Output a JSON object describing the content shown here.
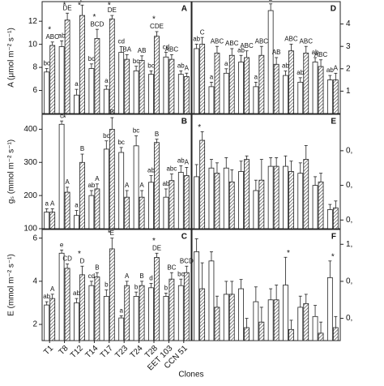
{
  "chart_data": [
    {
      "type": "bar",
      "title": "A",
      "y_label": "A (μmol m⁻² s⁻¹)",
      "axis_side": "left",
      "ylim": [
        4,
        13.7
      ],
      "yticks": [
        6,
        8,
        10,
        12
      ],
      "series": [
        {
          "color": "#ffffff",
          "hatch": false,
          "values": [
            7.6,
            9.8,
            5.6,
            7.9,
            6.1,
            9.3,
            7.7,
            7.4,
            8.9,
            7.4
          ],
          "errors": [
            0.3,
            0.5,
            0.5,
            0.4,
            0.3,
            0.5,
            0.4,
            0.3,
            0.4,
            0.3
          ],
          "letters": [
            "bc",
            "ab",
            "a",
            "bc",
            "a",
            "cd",
            "bc",
            "bc",
            "cd",
            "ab"
          ]
        },
        {
          "color": "#ffffff",
          "hatch": true,
          "values": [
            9.9,
            12.1,
            12.5,
            10.5,
            12.2,
            8.7,
            8.6,
            10.7,
            8.7,
            7.2
          ],
          "errors": [
            0.3,
            0.6,
            0.9,
            0.8,
            0.3,
            0.4,
            0.4,
            0.4,
            0.4,
            0.3
          ],
          "letters": [
            "ABC",
            "DE",
            "E",
            "BCD",
            "DE",
            "BA",
            "AB",
            "CDE",
            "ABC",
            "A"
          ]
        }
      ],
      "stars": [
        "*",
        "*",
        "*",
        "*",
        "*",
        null,
        null,
        "*",
        null,
        null
      ]
    },
    {
      "type": "bar",
      "title": "B",
      "y_label": "gₛ (mmol m⁻² s⁻¹)",
      "axis_side": "left",
      "ylim": [
        100,
        445
      ],
      "yticks": [
        100,
        200,
        300,
        400
      ],
      "series": [
        {
          "color": "#ffffff",
          "hatch": false,
          "values": [
            150,
            415,
            140,
            200,
            340,
            330,
            350,
            240,
            195,
            270
          ],
          "errors": [
            10,
            10,
            15,
            15,
            25,
            15,
            30,
            20,
            25,
            20
          ],
          "letters": [
            "a",
            "c",
            "a",
            "ab",
            "bc",
            "bc",
            "bc",
            "ab",
            "ab",
            "ab"
          ]
        },
        {
          "color": "#ffffff",
          "hatch": true,
          "values": [
            150,
            210,
            300,
            220,
            400,
            195,
            195,
            360,
            245,
            260
          ],
          "errors": [
            10,
            15,
            25,
            15,
            35,
            20,
            20,
            10,
            20,
            25
          ],
          "letters": [
            "A",
            "A",
            "B",
            "A",
            "B",
            "A",
            "A",
            "B",
            "abc",
            "A"
          ]
        }
      ],
      "stars": [
        null,
        "*",
        null,
        null,
        null,
        null,
        null,
        null,
        null,
        null
      ]
    },
    {
      "type": "bar",
      "title": "C",
      "y_label": "E (mmol m⁻² s⁻¹)",
      "axis_side": "left",
      "x_label": "Clones",
      "categories": [
        "T1",
        "T8",
        "T12",
        "T14",
        "T17",
        "T23",
        "T24",
        "T28",
        "EET 103",
        "CCN 51"
      ],
      "ylim": [
        1.25,
        6.4
      ],
      "yticks": [
        2,
        4,
        6
      ],
      "series": [
        {
          "color": "#ffffff",
          "hatch": false,
          "values": [
            2.9,
            5.3,
            3.0,
            3.8,
            3.3,
            2.3,
            3.3,
            3.7,
            3.3,
            3.8
          ],
          "errors": [
            0.15,
            0.15,
            0.2,
            0.2,
            0.3,
            0.1,
            0.2,
            0.2,
            0.15,
            0.3
          ],
          "letters": [
            "ab",
            "e",
            "ab",
            "cd",
            "b",
            "a",
            "b",
            "d",
            "b",
            "bc"
          ]
        },
        {
          "color": "#ffffff",
          "hatch": true,
          "values": [
            3.2,
            4.6,
            4.3,
            4.2,
            5.5,
            3.8,
            3.8,
            5.1,
            4.1,
            4.4
          ],
          "errors": [
            0.2,
            0.2,
            0.4,
            0.2,
            0.5,
            0.2,
            0.2,
            0.2,
            0.3,
            0.3
          ],
          "letters": [
            "A",
            "CD",
            "D",
            "B",
            "E",
            "A",
            "B",
            "DE",
            "BC",
            "BCD"
          ]
        }
      ],
      "stars": [
        null,
        null,
        "*",
        null,
        "*",
        null,
        null,
        "*",
        null,
        null
      ]
    },
    {
      "type": "bar",
      "title": "D",
      "axis_side": "right",
      "ylim": [
        0,
        5
      ],
      "yticks": [
        1,
        2,
        3,
        4
      ],
      "series": [
        {
          "color": "#ffffff",
          "hatch": false,
          "values": [
            2.9,
            1.2,
            1.8,
            2.3,
            1.2,
            4.6,
            1.7,
            1.4,
            2.3,
            1.5
          ],
          "errors": [
            0.2,
            0.2,
            0.2,
            0.3,
            0.2,
            0.3,
            0.2,
            0.2,
            0.2,
            0.2
          ],
          "letters": [
            "ab",
            "a",
            "a",
            "ab",
            "a",
            "b",
            "ab",
            "ab",
            "ab",
            "ab"
          ]
        },
        {
          "color": "#ffffff",
          "hatch": true,
          "values": [
            3.1,
            2.7,
            2.6,
            2.5,
            2.6,
            2.2,
            2.8,
            2.7,
            2.1,
            1.5
          ],
          "errors": [
            0.3,
            0.3,
            0.3,
            0.3,
            0.4,
            0.3,
            0.3,
            0.3,
            0.3,
            0.3
          ],
          "letters": [
            "C",
            "ABC",
            "ABC",
            "ABC",
            "ABC",
            "AB",
            "ABC",
            "ABC",
            "ABC",
            "A"
          ]
        }
      ]
    },
    {
      "type": "bar",
      "title": "E",
      "axis_side": "right",
      "ylim": [
        0.1,
        0.76
      ],
      "yticks": [
        {
          "value": 0.55,
          "label": "0,"
        },
        {
          "value": 0.35,
          "label": "0,"
        },
        {
          "value": 0.15,
          "label": "0,"
        }
      ],
      "series": [
        {
          "color": "#ffffff",
          "hatch": false,
          "values": [
            0.4,
            0.45,
            0.45,
            0.43,
            0.32,
            0.46,
            0.46,
            0.42,
            0.35,
            0.21
          ],
          "errors": [
            0.07,
            0.05,
            0.06,
            0.06,
            0.06,
            0.05,
            0.06,
            0.06,
            0.05,
            0.03
          ]
        },
        {
          "color": "#ffffff",
          "hatch": true,
          "values": [
            0.61,
            0.42,
            0.37,
            0.5,
            0.38,
            0.46,
            0.43,
            0.5,
            0.37,
            0.22
          ],
          "errors": [
            0.05,
            0.06,
            0.07,
            0.02,
            0.12,
            0.05,
            0.06,
            0.08,
            0.05,
            0.04
          ]
        }
      ],
      "stars": [
        "*",
        null,
        null,
        null,
        null,
        null,
        null,
        null,
        null,
        null
      ]
    },
    {
      "type": "bar",
      "title": "F",
      "axis_side": "right",
      "ylim": [
        0.48,
        1.08
      ],
      "yticks": [
        {
          "value": 1.0,
          "label": "1,"
        },
        {
          "value": 0.8,
          "label": "0,"
        },
        {
          "value": 0.6,
          "label": "0,"
        }
      ],
      "series": [
        {
          "color": "#ffffff",
          "hatch": false,
          "values": [
            0.96,
            0.91,
            0.73,
            0.76,
            0.69,
            0.7,
            0.78,
            0.66,
            0.61,
            0.82
          ],
          "errors": [
            0.07,
            0.05,
            0.07,
            0.05,
            0.08,
            0.06,
            0.15,
            0.06,
            0.06,
            0.09
          ]
        },
        {
          "color": "#ffffff",
          "hatch": true,
          "values": [
            0.76,
            0.66,
            0.73,
            0.55,
            0.58,
            0.7,
            0.54,
            0.68,
            0.52,
            0.55
          ],
          "errors": [
            0.14,
            0.06,
            0.07,
            0.05,
            0.08,
            0.08,
            0.05,
            0.05,
            0.06,
            0.06
          ]
        }
      ],
      "stars": [
        null,
        null,
        null,
        null,
        null,
        null,
        "*",
        null,
        null,
        "*"
      ]
    }
  ]
}
